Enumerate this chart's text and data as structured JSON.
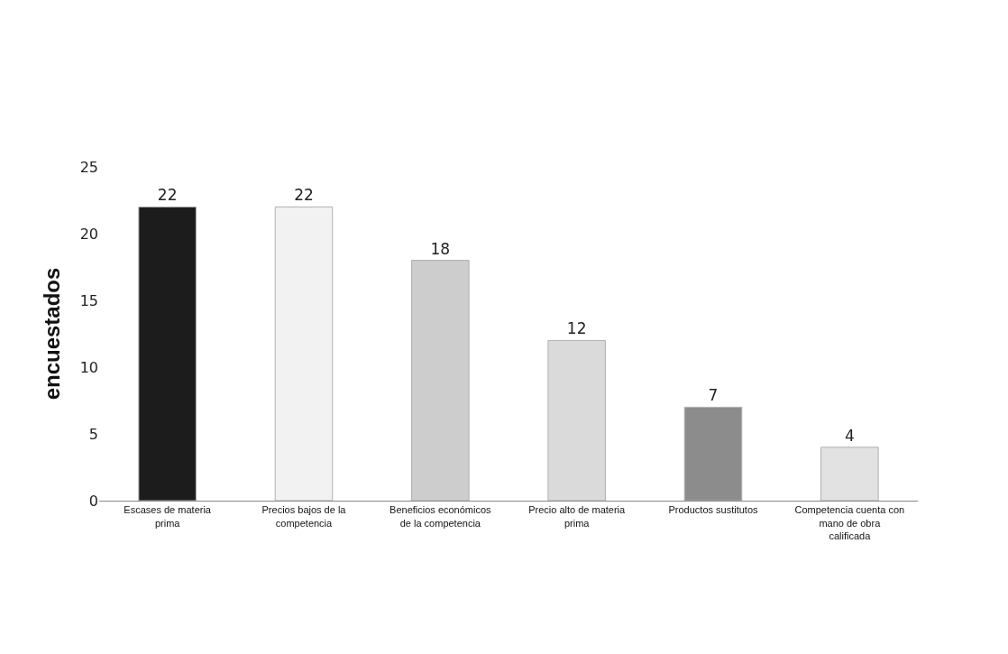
{
  "chart_data": {
    "type": "bar",
    "ylabel": "encuestados",
    "categories": [
      "Escases de materia prima",
      "Precios bajos de la competencia",
      "Beneficios económicos de la competencia",
      "Precio alto de materia prima",
      "Productos sustitutos",
      "Competencia cuenta con mano de obra calificada"
    ],
    "values": [
      22,
      22,
      18,
      12,
      7,
      4
    ],
    "colors": [
      "#1c1c1c",
      "#f2f2f2",
      "#cdcdcd",
      "#dadada",
      "#8c8c8c",
      "#e2e2e2"
    ],
    "ylim": [
      0,
      25
    ],
    "yticks": [
      0,
      5,
      10,
      15,
      20,
      25
    ],
    "data_labels": true
  }
}
